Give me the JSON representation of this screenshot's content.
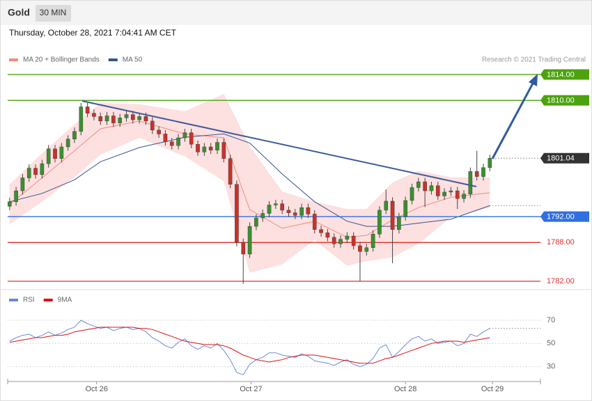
{
  "header": {
    "title": "Gold",
    "interval": "30 MIN",
    "timestamp": "Thursday, October 28, 2021 7:04:41 AM CET"
  },
  "chart_data": [
    {
      "type": "candlestick",
      "credit": "Research © 2021 Trading Central",
      "up_color": "#3b8f2f",
      "down_color": "#c8322a",
      "xlim": [
        -0.3,
        81.8
      ],
      "ylim": [
        1781.35,
        1815.3
      ],
      "x": [
        0,
        1,
        2,
        3,
        4,
        5,
        6,
        7,
        8,
        9,
        10,
        11,
        12,
        13,
        14,
        15,
        16,
        17,
        18,
        19,
        20,
        21,
        22,
        23,
        24,
        25,
        26,
        27,
        28,
        29,
        30,
        31,
        32,
        33,
        34,
        35,
        36,
        37,
        38,
        39,
        40,
        41,
        42,
        43,
        44,
        45,
        46,
        47,
        48,
        49,
        50,
        51,
        52,
        53,
        54,
        55,
        56,
        57,
        58,
        59,
        60,
        61,
        62,
        63,
        64,
        65,
        66,
        67,
        68,
        69,
        70,
        71,
        72,
        73,
        74
      ],
      "candles": [
        [
          1793.6,
          1794.9,
          1793.0,
          1794.3
        ],
        [
          1794.3,
          1796.6,
          1793.7,
          1796.0
        ],
        [
          1796.0,
          1798.6,
          1795.4,
          1798.0
        ],
        [
          1798.0,
          1800.1,
          1797.4,
          1799.5
        ],
        [
          1799.5,
          1800.1,
          1797.9,
          1798.5
        ],
        [
          1798.5,
          1800.8,
          1797.9,
          1800.2
        ],
        [
          1800.2,
          1803.1,
          1799.6,
          1802.5
        ],
        [
          1802.5,
          1803.1,
          1800.4,
          1801.0
        ],
        [
          1801.0,
          1803.4,
          1800.4,
          1802.8
        ],
        [
          1802.8,
          1804.6,
          1802.2,
          1804.0
        ],
        [
          1804.0,
          1805.8,
          1803.4,
          1805.2
        ],
        [
          1805.2,
          1809.6,
          1804.6,
          1809.0
        ],
        [
          1809.0,
          1809.6,
          1807.4,
          1808.0
        ],
        [
          1808.0,
          1808.6,
          1806.9,
          1807.5
        ],
        [
          1807.5,
          1808.1,
          1806.2,
          1806.8
        ],
        [
          1806.8,
          1808.2,
          1806.2,
          1807.6
        ],
        [
          1807.6,
          1808.2,
          1805.9,
          1806.5
        ],
        [
          1806.5,
          1807.9,
          1805.9,
          1807.3
        ],
        [
          1807.3,
          1808.4,
          1806.7,
          1807.8
        ],
        [
          1807.8,
          1808.4,
          1806.4,
          1807.0
        ],
        [
          1807.0,
          1808.1,
          1806.4,
          1807.5
        ],
        [
          1807.5,
          1808.1,
          1806.2,
          1806.8
        ],
        [
          1806.8,
          1807.4,
          1804.8,
          1805.4
        ],
        [
          1805.4,
          1806.0,
          1804.2,
          1804.8
        ],
        [
          1804.8,
          1805.4,
          1803.0,
          1803.6
        ],
        [
          1803.6,
          1804.2,
          1802.4,
          1803.0
        ],
        [
          1803.0,
          1804.8,
          1802.4,
          1804.2
        ],
        [
          1804.2,
          1805.6,
          1803.6,
          1805.0
        ],
        [
          1805.0,
          1805.6,
          1802.6,
          1803.2
        ],
        [
          1803.2,
          1803.8,
          1801.4,
          1802.0
        ],
        [
          1802.0,
          1803.4,
          1801.4,
          1802.8
        ],
        [
          1802.8,
          1803.4,
          1801.7,
          1802.3
        ],
        [
          1802.3,
          1804.1,
          1801.7,
          1803.5
        ],
        [
          1803.5,
          1804.1,
          1800.4,
          1801.0
        ],
        [
          1801.0,
          1801.6,
          1796.4,
          1797.0
        ],
        [
          1797.0,
          1797.6,
          1787.4,
          1788.0
        ],
        [
          1788.0,
          1788.6,
          1781.6,
          1786.2
        ],
        [
          1786.2,
          1791.1,
          1785.6,
          1790.5
        ],
        [
          1790.5,
          1792.4,
          1789.9,
          1791.8
        ],
        [
          1791.8,
          1793.1,
          1791.2,
          1792.5
        ],
        [
          1792.5,
          1794.4,
          1791.9,
          1793.8
        ],
        [
          1793.8,
          1794.6,
          1793.2,
          1794.0
        ],
        [
          1794.0,
          1794.6,
          1792.4,
          1793.0
        ],
        [
          1793.0,
          1793.6,
          1792.0,
          1792.6
        ],
        [
          1792.6,
          1793.2,
          1791.6,
          1792.2
        ],
        [
          1792.2,
          1794.0,
          1791.6,
          1793.4
        ],
        [
          1793.4,
          1794.0,
          1791.8,
          1792.4
        ],
        [
          1792.4,
          1793.0,
          1789.4,
          1790.0
        ],
        [
          1790.0,
          1790.6,
          1788.9,
          1789.5
        ],
        [
          1789.5,
          1790.1,
          1788.2,
          1788.8
        ],
        [
          1788.8,
          1789.4,
          1787.2,
          1787.8
        ],
        [
          1787.8,
          1789.1,
          1787.2,
          1788.5
        ],
        [
          1788.5,
          1789.6,
          1787.9,
          1789.0
        ],
        [
          1789.0,
          1789.6,
          1786.9,
          1787.5
        ],
        [
          1787.5,
          1788.1,
          1782.0,
          1786.6
        ],
        [
          1786.6,
          1787.8,
          1786.0,
          1787.2
        ],
        [
          1787.2,
          1789.9,
          1786.6,
          1789.3
        ],
        [
          1789.3,
          1793.6,
          1788.7,
          1793.0
        ],
        [
          1793.0,
          1796.2,
          1792.4,
          1794.4
        ],
        [
          1794.4,
          1795.0,
          1784.8,
          1790.0
        ],
        [
          1790.0,
          1792.6,
          1789.4,
          1792.0
        ],
        [
          1792.0,
          1795.1,
          1791.4,
          1794.5
        ],
        [
          1794.5,
          1797.1,
          1793.9,
          1796.5
        ],
        [
          1796.5,
          1798.0,
          1795.9,
          1797.4
        ],
        [
          1797.4,
          1798.0,
          1793.5,
          1796.0
        ],
        [
          1796.0,
          1797.4,
          1795.4,
          1796.8
        ],
        [
          1796.8,
          1797.4,
          1794.6,
          1795.2
        ],
        [
          1795.2,
          1796.4,
          1794.6,
          1795.8
        ],
        [
          1795.8,
          1796.6,
          1795.2,
          1796.0
        ],
        [
          1796.0,
          1796.6,
          1793.2,
          1794.8
        ],
        [
          1794.8,
          1796.1,
          1794.2,
          1795.5
        ],
        [
          1795.5,
          1799.6,
          1794.9,
          1799.0
        ],
        [
          1799.0,
          1802.2,
          1797.6,
          1798.2
        ],
        [
          1798.2,
          1800.2,
          1797.6,
          1799.6
        ],
        [
          1799.6,
          1801.6,
          1799.0,
          1801.04
        ]
      ],
      "series": [
        {
          "name": "MA 20 + Bollinger Bands",
          "color": "#f28b82",
          "band_color": "#fde0e0",
          "x": [
            0,
            5,
            10,
            14,
            20,
            27,
            33,
            37,
            42,
            47,
            52,
            55,
            59,
            63,
            68,
            74
          ],
          "values": [
            1793.9,
            1798.0,
            1802.2,
            1805.6,
            1806.8,
            1804.8,
            1804.2,
            1793.1,
            1790.2,
            1791.3,
            1788.8,
            1789.1,
            1791.5,
            1793.4,
            1795.0,
            1795.7
          ],
          "upper": [
            1797.0,
            1801.8,
            1806.3,
            1809.6,
            1809.4,
            1808.3,
            1811.0,
            1802.9,
            1795.9,
            1794.3,
            1793.2,
            1793.2,
            1797.3,
            1799.1,
            1798.1,
            1798.1
          ],
          "lower": [
            1790.8,
            1794.3,
            1798.1,
            1801.6,
            1804.2,
            1801.3,
            1797.5,
            1783.3,
            1784.6,
            1788.4,
            1784.4,
            1785.1,
            1785.7,
            1787.8,
            1791.9,
            1793.4
          ]
        },
        {
          "name": "MA 50",
          "color": "#34548f",
          "x": [
            0,
            5,
            10,
            14,
            20,
            27,
            33,
            37,
            42,
            47,
            52,
            55,
            59,
            63,
            68,
            74
          ],
          "values": [
            1794.3,
            1795.6,
            1797.7,
            1800.5,
            1802.7,
            1804.3,
            1804.8,
            1803.4,
            1798.6,
            1794.3,
            1791.3,
            1790.5,
            1790.5,
            1791.0,
            1791.6,
            1793.7
          ]
        }
      ],
      "levels": [
        {
          "value": 1814,
          "label": "1814.00",
          "color": "#4ca30d",
          "style": "box",
          "line": "solid"
        },
        {
          "value": 1810,
          "label": "1810.00",
          "color": "#4ca30d",
          "style": "box",
          "line": "solid"
        },
        {
          "value": 1801.04,
          "label": "1801.04",
          "color": "#333333",
          "style": "box",
          "line": "dotted"
        },
        {
          "value": 1792,
          "label": "1792.00",
          "color": "#2f6fe0",
          "style": "box",
          "line": "solid"
        },
        {
          "value": 1788,
          "label": "1788.00",
          "color": "#e0302a",
          "style": "text",
          "line": "solid"
        },
        {
          "value": 1782,
          "label": "1782.00",
          "color": "#e0302a",
          "style": "text",
          "line": "solid"
        }
      ]
    },
    {
      "type": "line",
      "xlim": [
        -0.3,
        81.8
      ],
      "ylim": [
        19,
        91
      ],
      "yticks": [
        30,
        50,
        70
      ],
      "grid": true,
      "xticks": [
        {
          "value": 13.4,
          "label": "Oct 26"
        },
        {
          "value": 37.2,
          "label": "Oct 27"
        },
        {
          "value": 61,
          "label": "Oct 28"
        },
        {
          "value": 74.4,
          "label": "Oct 29"
        }
      ],
      "x": [
        0,
        1,
        2,
        3,
        4,
        5,
        6,
        7,
        8,
        9,
        10,
        11,
        12,
        13,
        14,
        15,
        16,
        17,
        18,
        19,
        20,
        21,
        22,
        23,
        24,
        25,
        26,
        27,
        28,
        29,
        30,
        31,
        32,
        33,
        34,
        35,
        36,
        37,
        38,
        39,
        40,
        41,
        42,
        43,
        44,
        45,
        46,
        47,
        48,
        49,
        50,
        51,
        52,
        53,
        54,
        55,
        56,
        57,
        58,
        59,
        60,
        61,
        62,
        63,
        64,
        65,
        66,
        67,
        68,
        69,
        70,
        71,
        72,
        73,
        74
      ],
      "series": [
        {
          "name": "RSI",
          "color": "#6b8ad8",
          "values": [
            52,
            55,
            57,
            58,
            55,
            57,
            60,
            57,
            59,
            62,
            64,
            70,
            67,
            65,
            63,
            64,
            61,
            63,
            64,
            62,
            63,
            60,
            55,
            52,
            48,
            46,
            51,
            54,
            48,
            45,
            48,
            46,
            50,
            44,
            36,
            25,
            23,
            32,
            36,
            38,
            42,
            42,
            40,
            39,
            38,
            41,
            39,
            35,
            34,
            33,
            31,
            34,
            36,
            32,
            30,
            32,
            37,
            46,
            49,
            38,
            43,
            49,
            54,
            56,
            52,
            54,
            50,
            51,
            52,
            48,
            50,
            58,
            56,
            60,
            63
          ]
        },
        {
          "name": "9MA",
          "color": "#e01010",
          "values": [
            51,
            52,
            53,
            54,
            55,
            55,
            56,
            57,
            57,
            58,
            60,
            61,
            62,
            63,
            64,
            64,
            64,
            64,
            64,
            64,
            63,
            63,
            62,
            60,
            58,
            56,
            54,
            52,
            51,
            50,
            49,
            49,
            49,
            48,
            46,
            43,
            40,
            38,
            36,
            35,
            34,
            35,
            36,
            38,
            39,
            40,
            40,
            40,
            39,
            38,
            37,
            36,
            35,
            34,
            33,
            33,
            33,
            35,
            37,
            38,
            40,
            42,
            44,
            46,
            48,
            50,
            51,
            52,
            52,
            52,
            51,
            52,
            53,
            54,
            55
          ]
        }
      ]
    }
  ]
}
